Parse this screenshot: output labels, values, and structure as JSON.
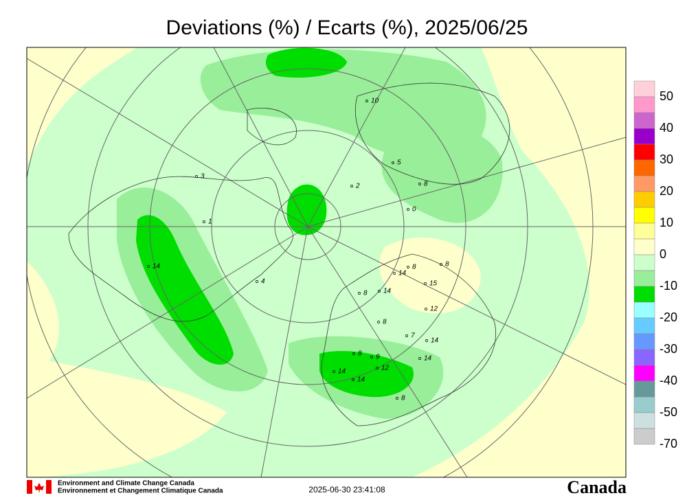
{
  "header": {
    "title": "Deviations (%) / Ecarts (%), 2025/06/25"
  },
  "legend": {
    "labels": [
      "50",
      "40",
      "30",
      "20",
      "10",
      "0",
      "-10",
      "-20",
      "-30",
      "-40",
      "-50",
      "-70"
    ],
    "colors": [
      "#ffd0d8",
      "#ff99cc",
      "#cc66cc",
      "#9900cc",
      "#ff0000",
      "#ff6600",
      "#ff9966",
      "#ffcc00",
      "#ffff00",
      "#ffff99",
      "#ffffcc",
      "#ccffcc",
      "#99ee99",
      "#00dd00",
      "#99ffff",
      "#66ccff",
      "#6699ff",
      "#8866ff",
      "#ff00ff",
      "#669999",
      "#99cccc",
      "#cce0e0",
      "#cccccc"
    ]
  },
  "map": {
    "stations": [
      "14",
      "14",
      "14",
      "8",
      "12",
      "14",
      "14",
      "8",
      "9",
      "14",
      "8",
      "15",
      "12",
      "7",
      "14",
      "8",
      "8",
      "2",
      "0",
      "5",
      "8",
      "10",
      "1",
      "3",
      "4",
      "8"
    ]
  },
  "footer": {
    "agency_en": "Environment and Climate Change Canada",
    "agency_fr": "Environnement et Changement Climatique Canada",
    "timestamp": "2025-06-30 23:41:08",
    "wordmark": "Canada"
  }
}
